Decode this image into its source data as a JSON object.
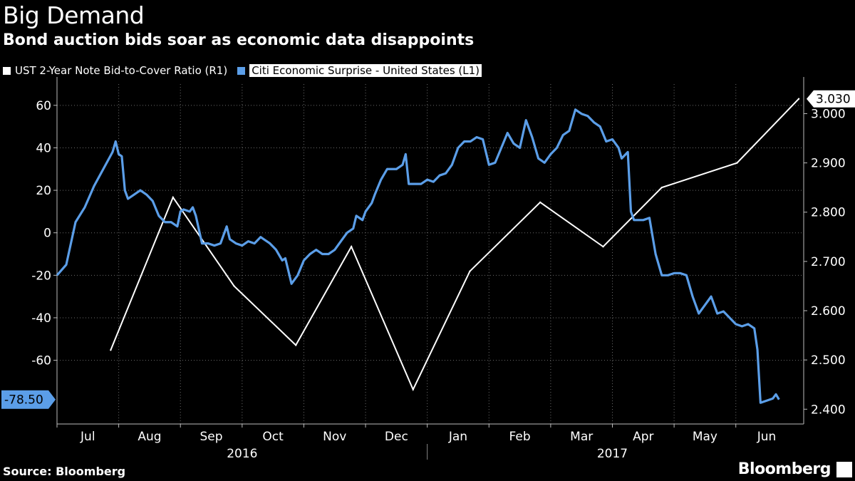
{
  "header": {
    "title": "Big Demand",
    "subtitle": "Bond auction bids soar as economic data disappoints"
  },
  "colors": {
    "series_r1": "#ffffff",
    "series_l1": "#5b9ee8",
    "background": "#000000"
  },
  "footer": {
    "source": "Source: Bloomberg",
    "brand": "Bloomberg"
  },
  "chart_data": {
    "type": "line",
    "title": "Big Demand",
    "subtitle": "Bond auction bids soar as economic data disappoints",
    "x_axis": {
      "months": [
        "Jul",
        "Aug",
        "Sep",
        "Oct",
        "Nov",
        "Dec",
        "Jan",
        "Feb",
        "Mar",
        "Apr",
        "May",
        "Jun"
      ],
      "years": [
        "2016",
        "2017"
      ],
      "range": [
        0,
        12.1
      ]
    },
    "left_axis": {
      "ticks": [
        "60",
        "40",
        "20",
        "0",
        "-20",
        "-40",
        "-60"
      ],
      "range": [
        -90,
        70
      ]
    },
    "right_axis": {
      "ticks": [
        "3.000",
        "2.900",
        "2.800",
        "2.700",
        "2.600",
        "2.500",
        "2.400"
      ],
      "range": [
        2.37,
        3.06
      ]
    },
    "series": [
      {
        "name": "UST 2-Year Note Bid-to-Cover Ratio  (R1)",
        "axis": "right",
        "last_value_label": "3.030",
        "points": [
          [
            0.87,
            2.52
          ],
          [
            1.88,
            2.83
          ],
          [
            2.87,
            2.65
          ],
          [
            3.87,
            2.53
          ],
          [
            4.77,
            2.73
          ],
          [
            5.77,
            2.44
          ],
          [
            6.69,
            2.68
          ],
          [
            7.83,
            2.82
          ],
          [
            8.85,
            2.73
          ],
          [
            9.8,
            2.85
          ],
          [
            11.02,
            2.9
          ],
          [
            12.02,
            3.03
          ]
        ]
      },
      {
        "name": "Citi Economic Surprise - United States  (L1)",
        "axis": "left",
        "last_value_label": "-78.50",
        "points": [
          [
            0.0,
            -20
          ],
          [
            0.15,
            -15
          ],
          [
            0.3,
            5
          ],
          [
            0.45,
            12
          ],
          [
            0.6,
            22
          ],
          [
            0.75,
            30
          ],
          [
            0.9,
            38
          ],
          [
            0.95,
            43
          ],
          [
            1.0,
            37
          ],
          [
            1.05,
            36
          ],
          [
            1.1,
            20
          ],
          [
            1.15,
            16
          ],
          [
            1.25,
            18
          ],
          [
            1.35,
            20
          ],
          [
            1.45,
            18
          ],
          [
            1.55,
            15
          ],
          [
            1.65,
            8
          ],
          [
            1.75,
            5
          ],
          [
            1.85,
            5
          ],
          [
            1.95,
            3
          ],
          [
            2.0,
            10
          ],
          [
            2.05,
            11
          ],
          [
            2.15,
            10
          ],
          [
            2.2,
            12
          ],
          [
            2.25,
            8
          ],
          [
            2.35,
            -5
          ],
          [
            2.45,
            -5
          ],
          [
            2.55,
            -6
          ],
          [
            2.65,
            -5
          ],
          [
            2.75,
            3
          ],
          [
            2.8,
            -3
          ],
          [
            2.9,
            -5
          ],
          [
            3.0,
            -6
          ],
          [
            3.1,
            -4
          ],
          [
            3.2,
            -5
          ],
          [
            3.3,
            -2
          ],
          [
            3.35,
            -3
          ],
          [
            3.45,
            -5
          ],
          [
            3.55,
            -8
          ],
          [
            3.65,
            -13
          ],
          [
            3.7,
            -12
          ],
          [
            3.8,
            -24
          ],
          [
            3.9,
            -20
          ],
          [
            4.0,
            -13
          ],
          [
            4.1,
            -10
          ],
          [
            4.2,
            -8
          ],
          [
            4.3,
            -10
          ],
          [
            4.4,
            -10
          ],
          [
            4.5,
            -8
          ],
          [
            4.6,
            -4
          ],
          [
            4.7,
            0
          ],
          [
            4.8,
            2
          ],
          [
            4.85,
            8
          ],
          [
            4.95,
            6
          ],
          [
            5.0,
            10
          ],
          [
            5.1,
            14
          ],
          [
            5.15,
            18
          ],
          [
            5.25,
            25
          ],
          [
            5.35,
            30
          ],
          [
            5.5,
            30
          ],
          [
            5.6,
            32
          ],
          [
            5.65,
            37
          ],
          [
            5.7,
            23
          ],
          [
            5.85,
            23
          ],
          [
            5.9,
            23
          ],
          [
            6.0,
            25
          ],
          [
            6.1,
            24
          ],
          [
            6.2,
            27
          ],
          [
            6.3,
            28
          ],
          [
            6.4,
            32
          ],
          [
            6.5,
            40
          ],
          [
            6.6,
            43
          ],
          [
            6.7,
            43
          ],
          [
            6.8,
            45
          ],
          [
            6.9,
            44
          ],
          [
            7.0,
            32
          ],
          [
            7.1,
            33
          ],
          [
            7.2,
            40
          ],
          [
            7.3,
            47
          ],
          [
            7.4,
            42
          ],
          [
            7.5,
            40
          ],
          [
            7.6,
            53
          ],
          [
            7.7,
            45
          ],
          [
            7.8,
            35
          ],
          [
            7.9,
            33
          ],
          [
            8.0,
            37
          ],
          [
            8.1,
            40
          ],
          [
            8.2,
            46
          ],
          [
            8.3,
            48
          ],
          [
            8.4,
            58
          ],
          [
            8.5,
            56
          ],
          [
            8.6,
            55
          ],
          [
            8.7,
            52
          ],
          [
            8.8,
            50
          ],
          [
            8.9,
            43
          ],
          [
            9.0,
            44
          ],
          [
            9.1,
            40
          ],
          [
            9.15,
            35
          ],
          [
            9.25,
            38
          ],
          [
            9.3,
            10
          ],
          [
            9.35,
            6
          ],
          [
            9.5,
            6
          ],
          [
            9.6,
            7
          ],
          [
            9.7,
            -10
          ],
          [
            9.8,
            -20
          ],
          [
            9.9,
            -20
          ],
          [
            10.0,
            -19
          ],
          [
            10.1,
            -19
          ],
          [
            10.2,
            -20
          ],
          [
            10.3,
            -30
          ],
          [
            10.4,
            -38
          ],
          [
            10.5,
            -34
          ],
          [
            10.6,
            -30
          ],
          [
            10.7,
            -38
          ],
          [
            10.8,
            -37
          ],
          [
            10.9,
            -40
          ],
          [
            11.0,
            -43
          ],
          [
            11.1,
            -44
          ],
          [
            11.2,
            -43
          ],
          [
            11.3,
            -45
          ],
          [
            11.35,
            -55
          ],
          [
            11.4,
            -80
          ],
          [
            11.5,
            -79
          ],
          [
            11.6,
            -78
          ],
          [
            11.65,
            -76
          ],
          [
            11.7,
            -78.5
          ]
        ]
      }
    ]
  }
}
